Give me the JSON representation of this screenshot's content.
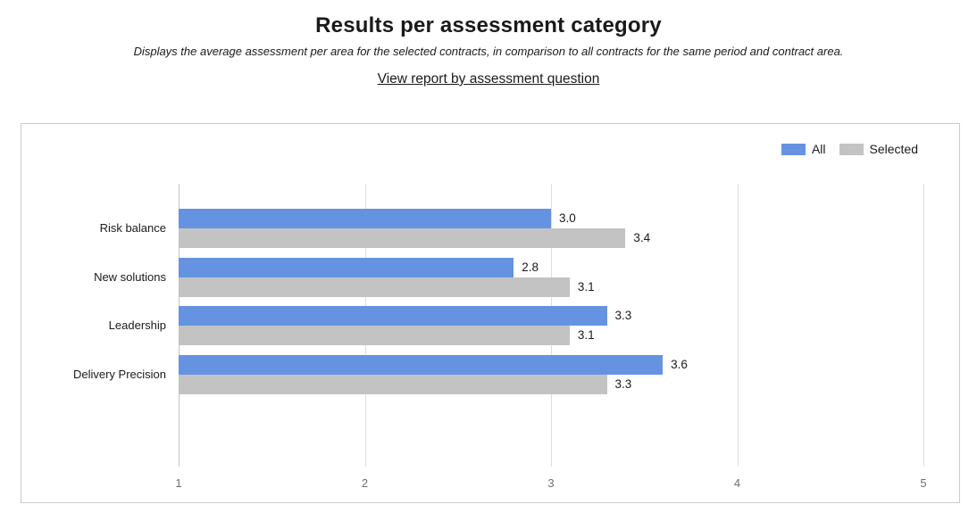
{
  "header": {
    "title": "Results per assessment category",
    "subtitle": "Displays the average assessment per area for the selected contracts, in comparison to all contracts for the same period and contract area.",
    "link_label": "View report by assessment question"
  },
  "chart_data": {
    "type": "bar",
    "orientation": "horizontal",
    "title": "Results per assessment category",
    "categories": [
      "Risk balance",
      "New solutions",
      "Leadership",
      "Delivery Precision"
    ],
    "series": [
      {
        "name": "All",
        "color": "#6593E2",
        "values": [
          3.0,
          2.8,
          3.3,
          3.6
        ]
      },
      {
        "name": "Selected",
        "color": "#C3C3C3",
        "values": [
          3.4,
          3.1,
          3.1,
          3.3
        ]
      }
    ],
    "xlim": [
      1,
      5
    ],
    "x_ticks": [
      "1",
      "2",
      "3",
      "4",
      "5"
    ],
    "grid": true,
    "legend_position": "top-right",
    "value_label_format": "0.0"
  },
  "colors": {
    "grid": "#DEDEDE",
    "baseline": "#C4C4C4",
    "chart_border": "#CCCCCC",
    "tick_text": "#6E6E6E",
    "text": "#1A1A1A"
  }
}
